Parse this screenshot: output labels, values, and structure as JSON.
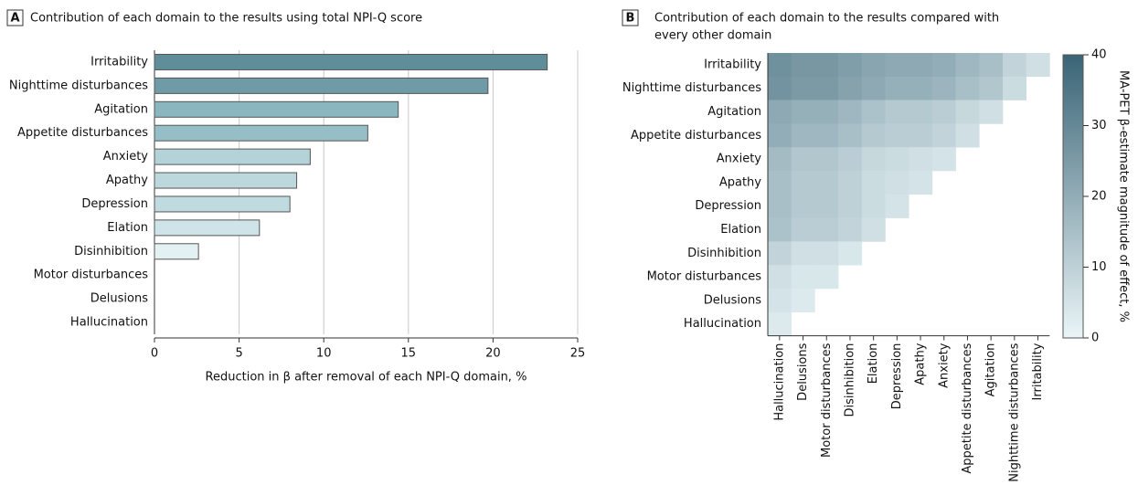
{
  "chart_data": [
    {
      "type": "barh",
      "panel": "A",
      "title": "Contribution of each domain to the results using total NPI-Q score",
      "categories": [
        "Irritability",
        "Nighttime disturbances",
        "Agitation",
        "Appetite disturbances",
        "Anxiety",
        "Apathy",
        "Depression",
        "Elation",
        "Disinhibition",
        "Motor disturbances",
        "Delusions",
        "Hallucination"
      ],
      "values": [
        23.2,
        19.7,
        14.4,
        12.6,
        9.2,
        8.4,
        8.0,
        6.2,
        2.6,
        0,
        0,
        0
      ],
      "colors": [
        "#5f8e9a",
        "#6e9ba6",
        "#8ab6bf",
        "#95bec7",
        "#b3d3d9",
        "#bcd8dd",
        "#c0dbe0",
        "#cfe4e8",
        "#e3f1f3",
        "#eef7f8",
        "#eef7f8",
        "#eef7f8"
      ],
      "xlabel": "Reduction in β after removal of each NPI-Q domain, %",
      "xlim": [
        0,
        25
      ],
      "xticks": [
        0,
        5,
        10,
        15,
        20,
        25
      ],
      "grid": true
    },
    {
      "type": "heatmap",
      "panel": "B",
      "title": [
        "Contribution of each domain to the results compared with",
        "every other domain"
      ],
      "y": [
        "Irritability",
        "Nighttime disturbances",
        "Agitation",
        "Appetite disturbances",
        "Anxiety",
        "Apathy",
        "Depression",
        "Elation",
        "Disinhibition",
        "Motor disturbances",
        "Delusions",
        "Hallucination"
      ],
      "x": [
        "Hallucination",
        "Delusions",
        "Motor disturbances",
        "Disinhibition",
        "Elation",
        "Depression",
        "Apathy",
        "Anxiety",
        "Appetite disturbances",
        "Agitation",
        "Nighttime disturbances",
        "Irritability"
      ],
      "values": [
        [
          28,
          26,
          26,
          24,
          22,
          21,
          21,
          20,
          17,
          15,
          9,
          6
        ],
        [
          27,
          25,
          25,
          23,
          21,
          19,
          19,
          18,
          15,
          13,
          7,
          null
        ],
        [
          21,
          19,
          19,
          17,
          14,
          12,
          12,
          11,
          8,
          6,
          null,
          null
        ],
        [
          20,
          17,
          17,
          15,
          12,
          11,
          11,
          9,
          6,
          null,
          null,
          null
        ],
        [
          16,
          13,
          13,
          11,
          8,
          7,
          6,
          5,
          null,
          null,
          null,
          null
        ],
        [
          15,
          12,
          12,
          10,
          7,
          6,
          5,
          null,
          null,
          null,
          null,
          null
        ],
        [
          15,
          12,
          12,
          10,
          7,
          5,
          null,
          null,
          null,
          null,
          null,
          null
        ],
        [
          14,
          11,
          11,
          9,
          6,
          null,
          null,
          null,
          null,
          null,
          null,
          null
        ],
        [
          9,
          6,
          6,
          4,
          null,
          null,
          null,
          null,
          null,
          null,
          null,
          null
        ],
        [
          6,
          4,
          4,
          null,
          null,
          null,
          null,
          null,
          null,
          null,
          null,
          null
        ],
        [
          5,
          3,
          null,
          null,
          null,
          null,
          null,
          null,
          null,
          null,
          null,
          null
        ],
        [
          3,
          null,
          null,
          null,
          null,
          null,
          null,
          null,
          null,
          null,
          null,
          null
        ]
      ],
      "colorscale": [
        "#eaf5f7",
        "#3a6476"
      ],
      "colorbar_label": "MA-PET β-estimate magnitude of effect, %",
      "clim": [
        0,
        40
      ],
      "cticks": [
        0,
        10,
        20,
        30,
        40
      ]
    }
  ]
}
